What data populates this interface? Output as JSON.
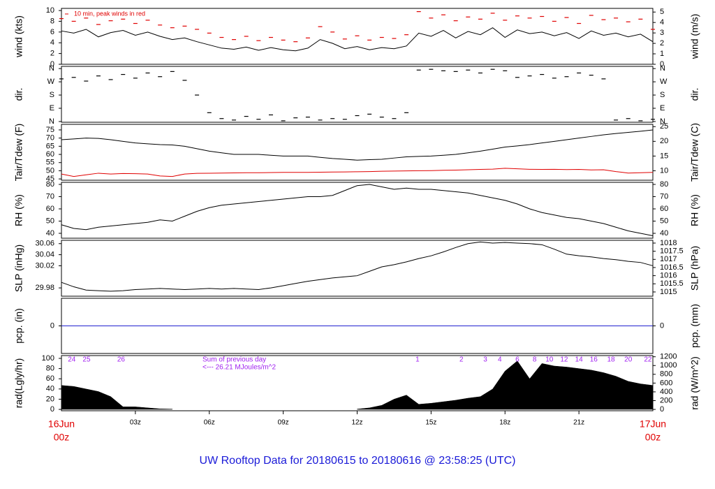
{
  "title": "UW Rooftop Data for 20180615  to  20180616 @ 23:58:25  (UTC)",
  "chart_data": [
    {
      "type": "line",
      "ylabel": "wind (kts)",
      "y2label": "wind (m/s)",
      "annotation": "10 min, peak winds in red",
      "ylim": [
        0,
        10.4
      ],
      "yticks": [
        0,
        2,
        4,
        6,
        8,
        10
      ],
      "y2lim": [
        0,
        5.35
      ],
      "y2ticks": [
        0,
        1,
        2,
        3,
        4,
        5
      ],
      "x": [
        0,
        0.5,
        1,
        1.5,
        2,
        2.5,
        3,
        3.5,
        4,
        4.5,
        5,
        5.5,
        6,
        6.5,
        7,
        7.5,
        8,
        8.5,
        9,
        9.5,
        10,
        10.5,
        11,
        11.5,
        12,
        12.5,
        13,
        13.5,
        14,
        14.5,
        15,
        15.5,
        16,
        16.5,
        17,
        17.5,
        18,
        18.5,
        19,
        19.5,
        20,
        20.5,
        21,
        21.5,
        22,
        22.5,
        23,
        23.5,
        24
      ],
      "series": [
        {
          "color": "#000000",
          "values": [
            6.2,
            5.8,
            6.5,
            5.1,
            5.9,
            6.3,
            5.4,
            6.0,
            5.2,
            4.6,
            4.9,
            4.2,
            3.6,
            3.0,
            2.8,
            3.2,
            2.6,
            3.1,
            2.7,
            2.5,
            3.0,
            4.6,
            3.9,
            2.9,
            3.3,
            2.7,
            3.1,
            2.9,
            3.4,
            5.8,
            5.2,
            6.3,
            4.9,
            6.1,
            5.5,
            6.8,
            5.0,
            6.4,
            5.7,
            6.0,
            5.3,
            5.9,
            4.8,
            6.2,
            5.4,
            5.8,
            5.1,
            5.6,
            4.2
          ]
        },
        {
          "color": "#e00000",
          "marker": "dash",
          "values": [
            8.5,
            8.0,
            8.6,
            7.4,
            8.1,
            8.4,
            7.6,
            8.2,
            7.3,
            6.8,
            7.1,
            6.5,
            5.8,
            5.0,
            4.6,
            5.2,
            4.4,
            5.0,
            4.5,
            4.2,
            4.9,
            7.0,
            6.0,
            4.7,
            5.3,
            4.5,
            5.0,
            4.8,
            5.5,
            9.8,
            8.6,
            9.2,
            8.1,
            8.8,
            8.4,
            9.5,
            8.2,
            9.0,
            8.6,
            8.9,
            8.0,
            8.7,
            7.6,
            9.1,
            8.3,
            8.6,
            7.9,
            8.4,
            6.5
          ]
        }
      ]
    },
    {
      "type": "scatter",
      "ylabel": "dir.",
      "y2label": "dir.",
      "mirror_ticks": true,
      "ylim": [
        -5,
        375
      ],
      "yticks": [
        {
          "value": 0,
          "label": "N"
        },
        {
          "value": 90,
          "label": "E"
        },
        {
          "value": 180,
          "label": "S"
        },
        {
          "value": 270,
          "label": "W"
        },
        {
          "value": 360,
          "label": "N"
        }
      ],
      "x": [
        0,
        0.5,
        1,
        1.5,
        2,
        2.5,
        3,
        3.5,
        4,
        4.5,
        5,
        5.5,
        6,
        6.5,
        7,
        7.5,
        8,
        8.5,
        9,
        9.5,
        10,
        10.5,
        11,
        11.5,
        12,
        12.5,
        13,
        13.5,
        14,
        14.5,
        15,
        15.5,
        16,
        16.5,
        17,
        17.5,
        18,
        18.5,
        19,
        19.5,
        20,
        20.5,
        21,
        21.5,
        22,
        22.5,
        23,
        23.5,
        24
      ],
      "series": [
        {
          "color": "#000000",
          "marker": "dash",
          "values": [
            290,
            300,
            275,
            310,
            285,
            320,
            295,
            330,
            305,
            340,
            280,
            180,
            60,
            20,
            10,
            35,
            15,
            45,
            5,
            25,
            30,
            10,
            20,
            15,
            40,
            50,
            30,
            20,
            60,
            350,
            355,
            345,
            340,
            350,
            330,
            355,
            345,
            300,
            310,
            320,
            295,
            305,
            330,
            315,
            290,
            10,
            20,
            5,
            15
          ]
        }
      ]
    },
    {
      "type": "line",
      "ylabel": "Tair/Tdew (F)",
      "y2label": "Tair/Tdew (C)",
      "ylim": [
        44.2,
        78.4
      ],
      "yticks": [
        45,
        50,
        55,
        60,
        65,
        70,
        75
      ],
      "y2lim": [
        6.78,
        25.78
      ],
      "y2ticks": [
        10,
        15,
        20,
        25
      ],
      "x": [
        0,
        0.5,
        1,
        1.5,
        2,
        2.5,
        3,
        3.5,
        4,
        4.5,
        5,
        5.5,
        6,
        6.5,
        7,
        7.5,
        8,
        8.5,
        9,
        9.5,
        10,
        10.5,
        11,
        11.5,
        12,
        12.5,
        13,
        13.5,
        14,
        14.5,
        15,
        15.5,
        16,
        16.5,
        17,
        17.5,
        18,
        18.5,
        19,
        19.5,
        20,
        20.5,
        21,
        21.5,
        22,
        22.5,
        23,
        23.5,
        24
      ],
      "series": [
        {
          "color": "#000000",
          "values": [
            69,
            69.5,
            70,
            69.8,
            69,
            68,
            67,
            66.5,
            66,
            65.8,
            65,
            63.5,
            62,
            61,
            60,
            60,
            60,
            59.5,
            59,
            59,
            59,
            58.2,
            57.5,
            57,
            56.5,
            56.8,
            57,
            57.8,
            58.5,
            58.8,
            59,
            59.5,
            60,
            61,
            62,
            63.2,
            64.5,
            65.2,
            66,
            67,
            68,
            69,
            70,
            71,
            72,
            72.8,
            73.5,
            74.2,
            75
          ]
        },
        {
          "color": "#e00000",
          "values": [
            48,
            46.5,
            47.5,
            48.5,
            48,
            48.3,
            48.2,
            48,
            46.8,
            46.5,
            48,
            48.4,
            48.5,
            48.6,
            48.7,
            48.8,
            48.8,
            48.9,
            49,
            49,
            49,
            49.1,
            49.2,
            49.3,
            49.4,
            49.5,
            49.7,
            49.8,
            49.9,
            50,
            50.1,
            50.3,
            50.4,
            50.6,
            50.8,
            51,
            51.5,
            51.2,
            50.9,
            50.8,
            50.9,
            50.7,
            50.8,
            50.5,
            50.6,
            49.5,
            48.6,
            48.8,
            49
          ]
        }
      ]
    },
    {
      "type": "line",
      "ylabel": "RH (%)",
      "y2label": "RH (%)",
      "mirror_ticks": true,
      "ylim": [
        36,
        81.7
      ],
      "yticks": [
        40,
        50,
        60,
        70,
        80
      ],
      "x": [
        0,
        0.5,
        1,
        1.5,
        2,
        2.5,
        3,
        3.5,
        4,
        4.5,
        5,
        5.5,
        6,
        6.5,
        7,
        7.5,
        8,
        8.5,
        9,
        9.5,
        10,
        10.5,
        11,
        11.5,
        12,
        12.5,
        13,
        13.5,
        14,
        14.5,
        15,
        15.5,
        16,
        16.5,
        17,
        17.5,
        18,
        18.5,
        19,
        19.5,
        20,
        20.5,
        21,
        21.5,
        22,
        22.5,
        23,
        23.5,
        24
      ],
      "series": [
        {
          "color": "#000000",
          "values": [
            47,
            44,
            43,
            45,
            46,
            47,
            48,
            49,
            51,
            50,
            54,
            58,
            61,
            63,
            64,
            65,
            66,
            67,
            68,
            69,
            70,
            70,
            71,
            75,
            79,
            80,
            78,
            76,
            77,
            76,
            76,
            75,
            74,
            73,
            71,
            69,
            67,
            64,
            60,
            57,
            55,
            53,
            52,
            50,
            48,
            45,
            42,
            40,
            38
          ]
        }
      ]
    },
    {
      "type": "line",
      "ylabel": "SLP (inHg)",
      "y2label": "SLP (hPa)",
      "ylim": [
        29.965,
        30.066
      ],
      "yticks": [
        29.98,
        30.02,
        30.04,
        30.06
      ],
      "y2lim": [
        1014.74,
        1018.17
      ],
      "y2ticks": [
        1015,
        1015.5,
        1016,
        1016.5,
        1017,
        1017.5,
        1018
      ],
      "x": [
        0,
        0.5,
        1,
        1.5,
        2,
        2.5,
        3,
        3.5,
        4,
        4.5,
        5,
        5.5,
        6,
        6.5,
        7,
        7.5,
        8,
        8.5,
        9,
        9.5,
        10,
        10.5,
        11,
        11.5,
        12,
        12.5,
        13,
        13.5,
        14,
        14.5,
        15,
        15.5,
        16,
        16.5,
        17,
        17.5,
        18,
        18.5,
        19,
        19.5,
        20,
        20.5,
        21,
        21.5,
        22,
        22.5,
        23,
        23.5,
        24
      ],
      "series": [
        {
          "color": "#000000",
          "values": [
            29.99,
            29.982,
            29.976,
            29.975,
            29.974,
            29.975,
            29.977,
            29.978,
            29.979,
            29.978,
            29.977,
            29.978,
            29.979,
            29.978,
            29.979,
            29.978,
            29.977,
            29.98,
            29.984,
            29.988,
            29.992,
            29.995,
            29.998,
            30.0,
            30.002,
            30.01,
            30.018,
            30.022,
            30.027,
            30.033,
            30.038,
            30.045,
            30.053,
            30.06,
            30.063,
            30.061,
            30.062,
            30.061,
            30.06,
            30.058,
            30.05,
            30.041,
            30.038,
            30.036,
            30.033,
            30.031,
            30.028,
            30.026,
            30.02
          ]
        }
      ]
    },
    {
      "type": "line",
      "ylabel": "pcp. (in)",
      "y2label": "pcp. (mm)",
      "mirror_ticks": true,
      "ylim": [
        -1,
        1
      ],
      "yticks": [
        0
      ],
      "x": [
        0,
        24
      ],
      "series": [
        {
          "color": "#2020d0",
          "values": [
            0,
            0
          ]
        }
      ]
    },
    {
      "type": "area",
      "ylabel": "rad(Lgly/hr)",
      "y2label": "rad (W/m^2)",
      "ylim": [
        -2.7,
        105.5
      ],
      "yticks": [
        0,
        20,
        40,
        60,
        80,
        100
      ],
      "y2lim": [
        -31,
        1227
      ],
      "y2ticks": [
        0,
        200,
        400,
        600,
        800,
        1000,
        1200
      ],
      "notes": [
        "Sum of previous day",
        "<--- 26.21 MJoules/m^2"
      ],
      "hour_labels": [
        {
          "x": 0.42,
          "label": "24"
        },
        {
          "x": 1.02,
          "label": "25"
        },
        {
          "x": 2.42,
          "label": "26"
        },
        {
          "x": 14.45,
          "label": "1"
        },
        {
          "x": 16.23,
          "label": "2"
        },
        {
          "x": 17.2,
          "label": "3"
        },
        {
          "x": 17.79,
          "label": "4"
        },
        {
          "x": 18.5,
          "label": "6"
        },
        {
          "x": 19.2,
          "label": "8"
        },
        {
          "x": 19.8,
          "label": "10"
        },
        {
          "x": 20.4,
          "label": "12"
        },
        {
          "x": 21.0,
          "label": "14"
        },
        {
          "x": 21.6,
          "label": "16"
        },
        {
          "x": 22.3,
          "label": "18"
        },
        {
          "x": 23.0,
          "label": "20"
        },
        {
          "x": 23.8,
          "label": "22"
        }
      ],
      "xticks": [
        {
          "value": 3,
          "label": "03z"
        },
        {
          "value": 6,
          "label": "06z"
        },
        {
          "value": 9,
          "label": "09z"
        },
        {
          "value": 12,
          "label": "12z"
        },
        {
          "value": 15,
          "label": "15z"
        },
        {
          "value": 18,
          "label": "18z"
        },
        {
          "value": 21,
          "label": "21z"
        }
      ],
      "x_start_label": [
        "16Jun",
        "00z"
      ],
      "x_end_label": [
        "17Jun",
        "00z"
      ],
      "x": [
        0,
        0.5,
        1,
        1.5,
        2,
        2.5,
        3,
        3.5,
        4,
        4.5,
        5,
        5.5,
        6,
        6.5,
        7,
        7.5,
        8,
        8.5,
        9,
        9.5,
        10,
        10.5,
        11,
        11.5,
        12,
        12.5,
        13,
        13.5,
        14,
        14.5,
        15,
        15.5,
        16,
        16.5,
        17,
        17.5,
        18,
        18.5,
        19,
        19.5,
        20,
        20.5,
        21,
        21.5,
        22,
        22.5,
        23,
        23.5,
        24
      ],
      "series": [
        {
          "color": "#000000",
          "values": [
            47,
            45,
            40,
            35,
            25,
            5,
            5,
            3,
            1,
            0.5,
            null,
            null,
            null,
            null,
            null,
            null,
            null,
            null,
            null,
            null,
            null,
            null,
            null,
            null,
            0.5,
            3,
            8,
            20,
            28,
            10,
            12,
            15,
            18,
            22,
            25,
            40,
            75,
            95,
            60,
            90,
            85,
            83,
            80,
            77,
            72,
            65,
            55,
            50,
            47
          ]
        }
      ]
    }
  ]
}
